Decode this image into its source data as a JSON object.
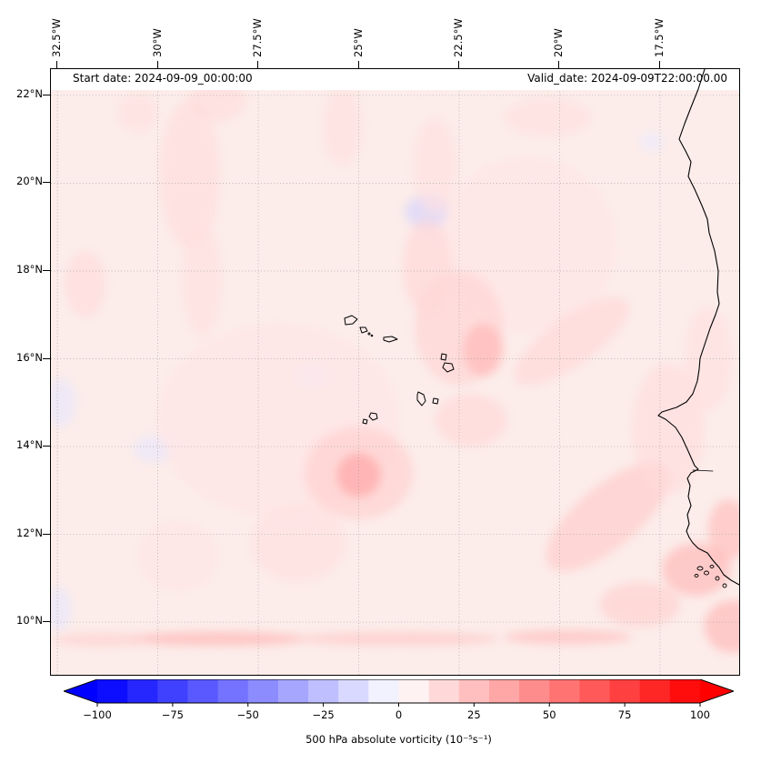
{
  "header": {
    "start_date": "Start date: 2024-09-09_00:00:00",
    "valid_date": "Valid_date: 2024-09-09T22:00:00.00"
  },
  "axes": {
    "lon_tick_labels": [
      "32.5°W",
      "30°W",
      "27.5°W",
      "25°W",
      "22.5°W",
      "20°W",
      "17.5°W"
    ],
    "lat_tick_labels": [
      "22°N",
      "20°N",
      "18°N",
      "16°N",
      "14°N",
      "12°N",
      "10°N"
    ]
  },
  "colorbar": {
    "tick_labels": [
      "−100",
      "−75",
      "−50",
      "−25",
      "0",
      "25",
      "50",
      "75",
      "100"
    ],
    "tick_values": [
      -100,
      -75,
      -50,
      -25,
      0,
      25,
      50,
      75,
      100
    ],
    "label": "500 hPa absolute vorticity (10⁻⁵s⁻¹)",
    "clim": [
      -100,
      100
    ],
    "n_segments": 20,
    "colormap": "bwr",
    "left_extend_color": "#0000ff",
    "right_extend_color": "#ff0000"
  },
  "chart_data": {
    "type": "heatmap",
    "title": "500 hPa absolute vorticity",
    "start_date": "2024-09-09_00:00:00",
    "valid_date": "2024-09-09T22:00:00.00",
    "units": "10^-5 s^-1",
    "colormap": "bwr",
    "clim": [
      -100,
      100
    ],
    "xlim_lon": [
      -32.66,
      -15.53
    ],
    "ylim_lat": [
      8.8,
      22.6
    ],
    "lon_ticks_deg": [
      -32.5,
      -30,
      -27.5,
      -25,
      -22.5,
      -20,
      -17.5
    ],
    "lat_ticks_deg": [
      22,
      20,
      18,
      16,
      14,
      12,
      10
    ],
    "grid": "dotted",
    "background_value": 6,
    "background_color": "#fcedea",
    "field_summary": "Weak positive absolute vorticity (≈0–25) over most of the domain near Cape Verde and the West African coast, with isolated stronger maxima (≈30–40) southwest of the islands, along the southern edge, and near the Senegal/Guinea coast; a few weak negative (bluish) patches, most notably near 23.3W/19.3N.",
    "features": [
      {
        "lon": -23.3,
        "lat": 19.35,
        "value": -18,
        "rx": 0.55,
        "ry": 0.38
      },
      {
        "lon": -30.1,
        "lat": 13.95,
        "value": -10,
        "rx": 0.5,
        "ry": 0.3
      },
      {
        "lon": -32.4,
        "lat": 15.0,
        "value": -10,
        "rx": 0.35,
        "ry": 0.55
      },
      {
        "lon": -26.2,
        "lat": 15.6,
        "value": -8,
        "rx": 0.45,
        "ry": 0.3
      },
      {
        "lon": -32.45,
        "lat": 10.3,
        "value": -10,
        "rx": 0.3,
        "ry": 0.5
      },
      {
        "lon": -17.7,
        "lat": 20.95,
        "value": -8,
        "rx": 0.3,
        "ry": 0.22
      },
      {
        "lon": -27.0,
        "lat": 14.6,
        "value": 10,
        "rx": 3.0,
        "ry": 2.2
      },
      {
        "lon": -20.8,
        "lat": 18.6,
        "value": 10,
        "rx": 2.2,
        "ry": 2.0
      },
      {
        "lon": -25.0,
        "lat": 13.4,
        "value": 20,
        "rx": 1.35,
        "ry": 1.05
      },
      {
        "lon": -25.0,
        "lat": 13.35,
        "value": 38,
        "rx": 0.55,
        "ry": 0.5
      },
      {
        "lon": -22.5,
        "lat": 16.7,
        "value": 18,
        "rx": 1.1,
        "ry": 1.3
      },
      {
        "lon": -21.9,
        "lat": 16.2,
        "value": 30,
        "rx": 0.5,
        "ry": 0.6
      },
      {
        "lon": -23.3,
        "lat": 18.1,
        "value": 16,
        "rx": 0.6,
        "ry": 1.1
      },
      {
        "lon": -23.1,
        "lat": 20.4,
        "value": 12,
        "rx": 0.55,
        "ry": 1.1
      },
      {
        "lon": -29.2,
        "lat": 20.2,
        "value": 14,
        "rx": 0.75,
        "ry": 1.7
      },
      {
        "lon": -28.5,
        "lat": 21.9,
        "value": 14,
        "rx": 0.7,
        "ry": 0.5
      },
      {
        "lon": -30.5,
        "lat": 21.6,
        "value": 12,
        "rx": 0.5,
        "ry": 0.45
      },
      {
        "lon": -28.9,
        "lat": 17.8,
        "value": 12,
        "rx": 0.5,
        "ry": 1.3
      },
      {
        "lon": -31.8,
        "lat": 17.7,
        "value": 15,
        "rx": 0.5,
        "ry": 0.75
      },
      {
        "lon": -25.4,
        "lat": 21.3,
        "value": 12,
        "rx": 0.5,
        "ry": 0.9
      },
      {
        "lon": -20.3,
        "lat": 21.5,
        "value": 12,
        "rx": 1.1,
        "ry": 0.45
      },
      {
        "lon": -19.7,
        "lat": 16.4,
        "value": 16,
        "rx": 1.7,
        "ry": 0.55,
        "rot": -35
      },
      {
        "lon": -18.8,
        "lat": 12.4,
        "value": 22,
        "rx": 1.9,
        "ry": 0.7,
        "rot": -40
      },
      {
        "lon": -16.6,
        "lat": 11.2,
        "value": 30,
        "rx": 0.85,
        "ry": 0.6
      },
      {
        "lon": -15.8,
        "lat": 12.1,
        "value": 28,
        "rx": 0.5,
        "ry": 0.7
      },
      {
        "lon": -15.7,
        "lat": 9.9,
        "value": 30,
        "rx": 0.7,
        "ry": 0.6
      },
      {
        "lon": -18.0,
        "lat": 10.4,
        "value": 20,
        "rx": 1.0,
        "ry": 0.5
      },
      {
        "lon": -22.2,
        "lat": 14.6,
        "value": 16,
        "rx": 0.9,
        "ry": 0.6
      },
      {
        "lon": -17.3,
        "lat": 14.4,
        "value": 14,
        "rx": 0.9,
        "ry": 1.5
      },
      {
        "lon": -16.3,
        "lat": 16.0,
        "value": 12,
        "rx": 0.6,
        "ry": 1.2
      },
      {
        "lon": -26.5,
        "lat": 11.8,
        "value": 12,
        "rx": 1.2,
        "ry": 0.9
      },
      {
        "lon": -29.5,
        "lat": 11.5,
        "value": 10,
        "rx": 1.0,
        "ry": 0.8
      },
      {
        "lon": -28.5,
        "lat": 9.62,
        "value": 32,
        "rx": 2.2,
        "ry": 0.16
      },
      {
        "lon": -24.0,
        "lat": 9.62,
        "value": 24,
        "rx": 2.5,
        "ry": 0.15
      },
      {
        "lon": -19.8,
        "lat": 9.66,
        "value": 28,
        "rx": 1.6,
        "ry": 0.16
      },
      {
        "lon": -31.4,
        "lat": 9.6,
        "value": 20,
        "rx": 1.2,
        "ry": 0.15
      }
    ]
  }
}
